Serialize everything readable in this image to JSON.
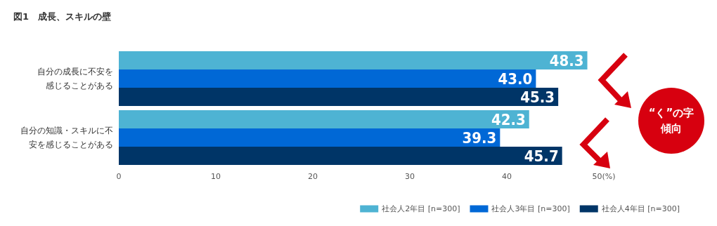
{
  "chart_data": {
    "type": "bar",
    "orientation": "horizontal",
    "title": "図1　成長、スキルの壁",
    "categories": [
      "自分の成長に不安を感じることがある",
      "自分の知識・スキルに不安を感じることがある"
    ],
    "series": [
      {
        "name": "社会人2年目 [n=300]",
        "color": "#4eb3d3",
        "values": [
          48.3,
          42.3
        ],
        "value_labels": [
          "48.3",
          "42.3"
        ]
      },
      {
        "name": "社会人3年目 [n=300]",
        "color": "#0068d6",
        "values": [
          43.0,
          39.3
        ],
        "value_labels": [
          "43.0",
          "39.3"
        ]
      },
      {
        "name": "社会人4年目 [n=300]",
        "color": "#003567",
        "values": [
          45.3,
          45.7
        ],
        "value_labels": [
          "45.3",
          "45.7"
        ]
      }
    ],
    "xlim": [
      0,
      50
    ],
    "xticks": [
      0,
      10,
      20,
      30,
      40,
      {
        "value": 50,
        "label": "50(%)"
      }
    ],
    "grid": false,
    "legend": "bottom right",
    "annotations": [
      "“く”の字傾向"
    ]
  }
}
